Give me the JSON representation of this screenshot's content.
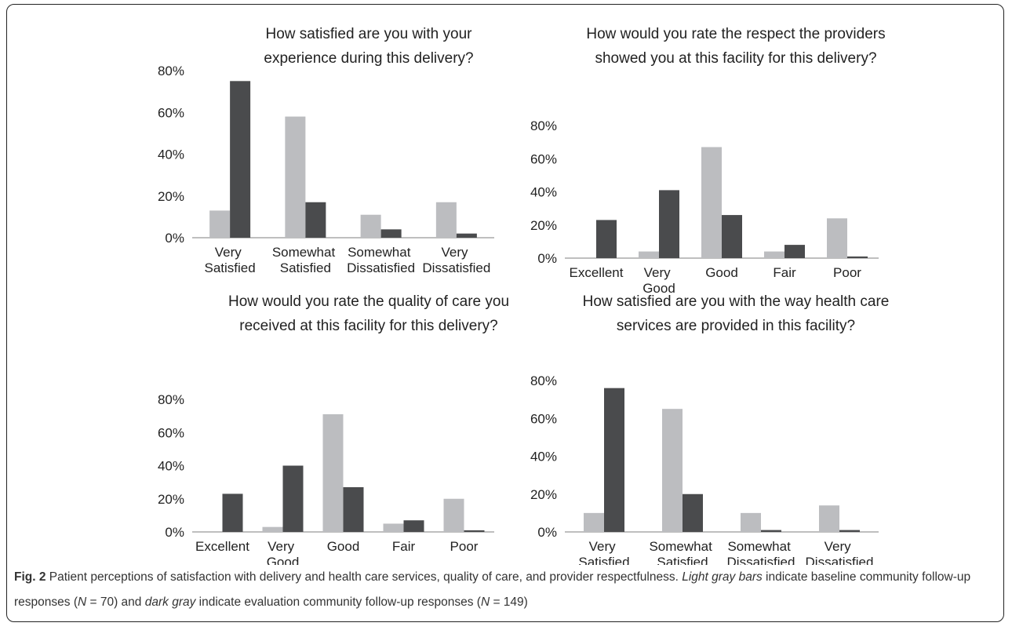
{
  "chart_data": [
    {
      "type": "bar",
      "title": "How satisfied are you with your experience during this delivery?",
      "categories": [
        "Very Satisfied",
        "Somewhat Satisfied",
        "Somewhat Dissatisfied",
        "Very Dissatisfied"
      ],
      "series": [
        {
          "color": "#bcbdc0",
          "values": [
            13,
            58,
            11,
            17
          ]
        },
        {
          "color": "#4a4b4d",
          "values": [
            75,
            17,
            4,
            2
          ]
        }
      ],
      "ylim": [
        0,
        80
      ],
      "yticks": [
        {
          "value": 0,
          "label": "0%"
        },
        {
          "value": 20,
          "label": "20%"
        },
        {
          "value": 40,
          "label": "40%"
        },
        {
          "value": 60,
          "label": "60%"
        },
        {
          "value": 80,
          "label": "80%"
        }
      ]
    },
    {
      "type": "bar",
      "title": "How would you rate the respect the providers showed you at this facility for this delivery?",
      "categories": [
        "Excellent",
        "Very Good",
        "Good",
        "Fair",
        "Poor"
      ],
      "series": [
        {
          "color": "#bcbdc0",
          "values": [
            0,
            4,
            67,
            4,
            24
          ]
        },
        {
          "color": "#4a4b4d",
          "values": [
            23,
            41,
            26,
            8,
            1
          ]
        }
      ],
      "ylim": [
        0,
        80
      ],
      "yticks": [
        {
          "value": 0,
          "label": "0%"
        },
        {
          "value": 20,
          "label": "20%"
        },
        {
          "value": 40,
          "label": "40%"
        },
        {
          "value": 60,
          "label": "60%"
        },
        {
          "value": 80,
          "label": "80%"
        }
      ]
    },
    {
      "type": "bar",
      "title": "How would you rate the quality of care you received at this facility for this delivery?",
      "categories": [
        "Excellent",
        "Very Good",
        "Good",
        "Fair",
        "Poor"
      ],
      "series": [
        {
          "color": "#bcbdc0",
          "values": [
            0,
            3,
            71,
            5,
            20
          ]
        },
        {
          "color": "#4a4b4d",
          "values": [
            23,
            40,
            27,
            7,
            1
          ]
        }
      ],
      "ylim": [
        0,
        80
      ],
      "yticks": [
        {
          "value": 0,
          "label": "0%"
        },
        {
          "value": 20,
          "label": "20%"
        },
        {
          "value": 40,
          "label": "40%"
        },
        {
          "value": 60,
          "label": "60%"
        },
        {
          "value": 80,
          "label": "80%"
        }
      ]
    },
    {
      "type": "bar",
      "title": "How satisfied are you with the way health care services are provided in this facility?",
      "categories": [
        "Very Satisfied",
        "Somewhat Satisfied",
        "Somewhat Dissatisfied",
        "Very Dissatisfied"
      ],
      "series": [
        {
          "color": "#bcbdc0",
          "values": [
            10,
            65,
            10,
            14
          ]
        },
        {
          "color": "#4a4b4d",
          "values": [
            76,
            20,
            1,
            1
          ]
        }
      ],
      "ylim": [
        0,
        80
      ],
      "yticks": [
        {
          "value": 0,
          "label": "0%"
        },
        {
          "value": 20,
          "label": "20%"
        },
        {
          "value": 40,
          "label": "40%"
        },
        {
          "value": 60,
          "label": "60%"
        },
        {
          "value": 80,
          "label": "80%"
        }
      ]
    }
  ],
  "caption": {
    "label": "Fig. 2",
    "parts": [
      " Patient perceptions of satisfaction with delivery and health care services, quality of care, and provider respectfulness. ",
      "Light gray bars",
      " indicate baseline community follow-up responses (",
      "N",
      " = 70) and ",
      "dark gray",
      " indicate evaluation community follow-up responses (",
      "N",
      " = 149)"
    ]
  }
}
